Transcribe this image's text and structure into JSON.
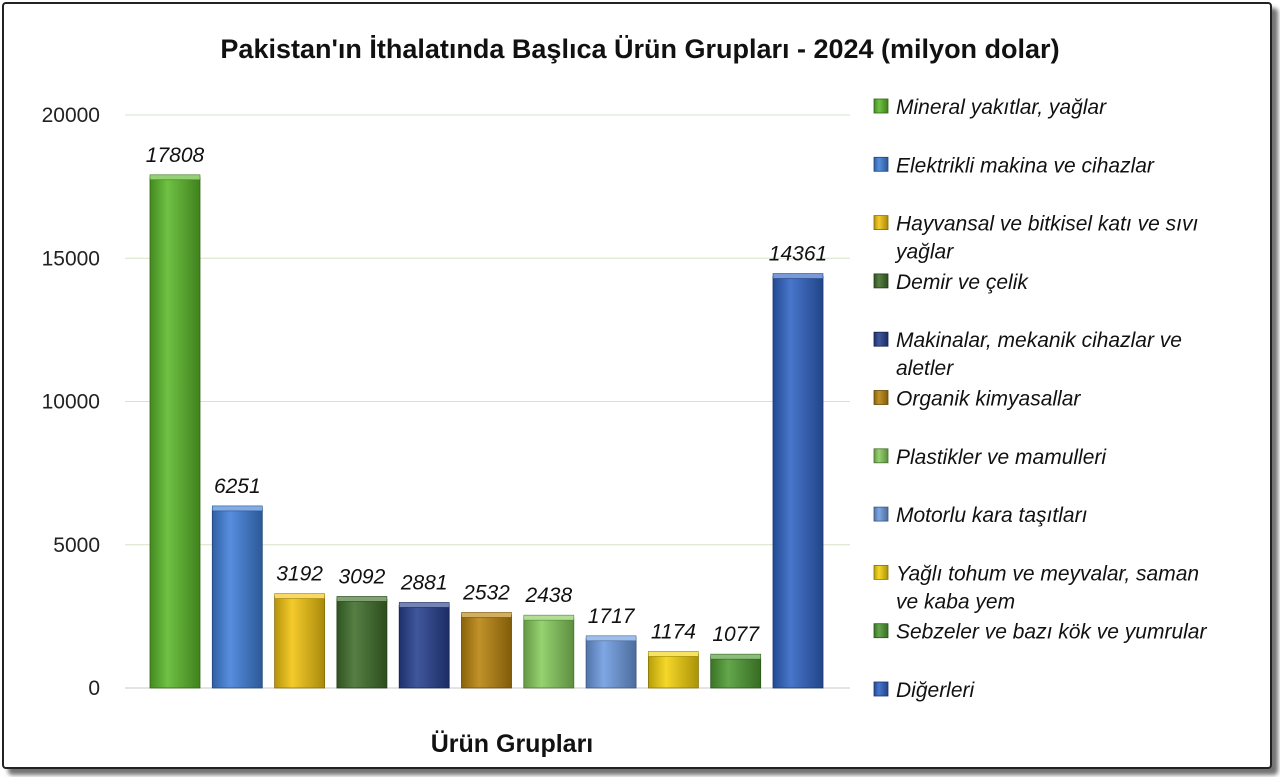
{
  "chart_data": {
    "type": "bar",
    "title": "Pakistan'ın İthalatında Başlıca Ürün Grupları - 2024 (milyon dolar)",
    "xlabel": "Ürün Grupları",
    "ylabel": "",
    "ylim": [
      0,
      20000
    ],
    "yticks": [
      0,
      5000,
      10000,
      15000,
      20000
    ],
    "grid": true,
    "legend_position": "right",
    "categories": [
      "Mineral yakıtlar, yağlar",
      "Elektrikli makina ve cihazlar",
      "Hayvansal ve bitkisel katı ve sıvı yağlar",
      "Demir ve çelik",
      "Makinalar, mekanik cihazlar ve aletler",
      "Organik kimyasallar",
      "Plastikler ve mamulleri",
      "Motorlu kara taşıtları",
      "Yağlı tohum ve meyvalar, saman ve kaba yem",
      "Sebzeler ve bazı kök ve yumrular",
      "Diğerleri"
    ],
    "values": [
      17808,
      6251,
      3192,
      3092,
      2881,
      2532,
      2438,
      1717,
      1174,
      1077,
      14361
    ],
    "colors": [
      "#5bb82a",
      "#3f7fd9",
      "#f2c40f",
      "#3f6e2a",
      "#26408f",
      "#b8830d",
      "#86cc5c",
      "#6d9be0",
      "#f4d20c",
      "#4e9a32",
      "#2f63c4"
    ],
    "legend_lines": [
      [
        "Mineral yakıtlar, yağlar"
      ],
      [
        "Elektrikli makina ve cihazlar"
      ],
      [
        "Hayvansal ve bitkisel katı ve sıvı",
        "yağlar"
      ],
      [
        "Demir ve çelik"
      ],
      [
        "Makinalar, mekanik cihazlar ve",
        "aletler"
      ],
      [
        "Organik kimyasallar"
      ],
      [
        "Plastikler ve mamulleri"
      ],
      [
        "Motorlu kara taşıtları"
      ],
      [
        "Yağlı tohum ve meyvalar, saman",
        "ve kaba yem"
      ],
      [
        "Sebzeler ve bazı kök ve yumrular"
      ],
      [
        "Diğerleri"
      ]
    ]
  }
}
